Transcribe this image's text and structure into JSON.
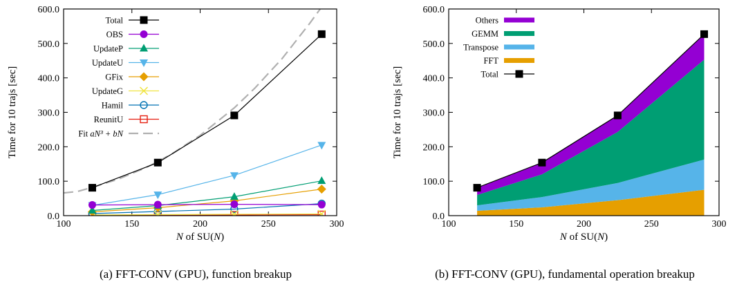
{
  "chart_data": [
    {
      "type": "line",
      "xlabel_prefix": "N",
      "xlabel_suffix": " of SU(",
      "xlabel_var": "N",
      "xlabel_close": ")",
      "ylabel": "Time for 10 trajs [sec]",
      "xlim": [
        100,
        300
      ],
      "ylim": [
        0,
        600
      ],
      "xticks": [
        "100",
        "150",
        "200",
        "250",
        "300"
      ],
      "yticks": [
        "0.0",
        "100.0",
        "200.0",
        "300.0",
        "400.0",
        "500.0",
        "600.0"
      ],
      "x": [
        121,
        169,
        225,
        289
      ],
      "series": [
        {
          "name": "Total",
          "color": "#000000",
          "marker": "square-filled",
          "values": [
            81,
            154,
            291,
            527
          ]
        },
        {
          "name": "OBS",
          "color": "#9400d3",
          "marker": "circle-filled",
          "values": [
            31,
            32,
            33,
            32
          ]
        },
        {
          "name": "UpdateP",
          "color": "#009e73",
          "marker": "triangle-up",
          "values": [
            15,
            29,
            55,
            101
          ]
        },
        {
          "name": "UpdateU",
          "color": "#56b4e9",
          "marker": "triangle-down",
          "values": [
            30,
            61,
            117,
            205
          ]
        },
        {
          "name": "GFix",
          "color": "#e69f00",
          "marker": "diamond-filled",
          "values": [
            11,
            23,
            43,
            77
          ]
        },
        {
          "name": "UpdateG",
          "color": "#f0e442",
          "marker": "cross",
          "values": [
            2,
            3,
            4,
            5
          ]
        },
        {
          "name": "Hamil",
          "color": "#0072b2",
          "marker": "circle-open",
          "values": [
            6,
            12,
            19,
            35
          ]
        },
        {
          "name": "ReunitU",
          "color": "#e51e10",
          "marker": "square-open",
          "values": [
            1,
            1,
            2,
            3
          ]
        }
      ],
      "fit": {
        "name_prefix": "Fit ",
        "name_formula": "aN³ + bN",
        "color": "#b0b0b0",
        "style": "dashed",
        "x": [
          100,
          110,
          121,
          140,
          160,
          169,
          180,
          200,
          225,
          240,
          260,
          280,
          289,
          300
        ],
        "values": [
          66,
          70,
          82,
          106,
          139,
          157,
          181,
          233,
          313,
          370,
          456,
          557,
          606,
          669
        ]
      },
      "legend_position": "top-left",
      "caption": "(a)  FFT-CONV (GPU), function breakup"
    },
    {
      "type": "area",
      "xlabel_prefix": "N",
      "xlabel_suffix": " of SU(",
      "xlabel_var": "N",
      "xlabel_close": ")",
      "ylabel": "Time for 10 trajs [sec]",
      "xlim": [
        100,
        300
      ],
      "ylim": [
        0,
        600
      ],
      "xticks": [
        "100",
        "150",
        "200",
        "250",
        "300"
      ],
      "yticks": [
        "0.0",
        "100.0",
        "200.0",
        "300.0",
        "400.0",
        "500.0",
        "600.0"
      ],
      "x": [
        121,
        169,
        225,
        289
      ],
      "stack_order_bottom_to_top": [
        "FFT",
        "Transpose",
        "GEMM",
        "Others"
      ],
      "series": [
        {
          "name": "Others",
          "color": "#9400d3",
          "values": [
            20,
            33,
            48,
            75
          ]
        },
        {
          "name": "GEMM",
          "color": "#009e73",
          "values": [
            30,
            66,
            148,
            290
          ]
        },
        {
          "name": "Transpose",
          "color": "#56b4e9",
          "values": [
            16,
            30,
            50,
            88
          ]
        },
        {
          "name": "FFT",
          "color": "#e69f00",
          "values": [
            14,
            24,
            45,
            75
          ]
        }
      ],
      "total": {
        "name": "Total",
        "color": "#000000",
        "marker": "square-filled",
        "values": [
          81,
          154,
          291,
          527
        ]
      },
      "legend_position": "top-left",
      "caption": "(b)  FFT-CONV (GPU), fundamental operation breakup"
    }
  ]
}
